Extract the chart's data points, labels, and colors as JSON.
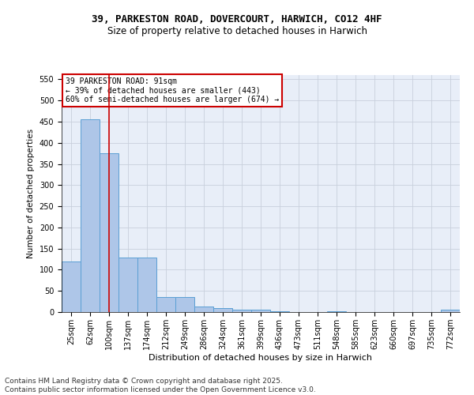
{
  "title_line1": "39, PARKESTON ROAD, DOVERCOURT, HARWICH, CO12 4HF",
  "title_line2": "Size of property relative to detached houses in Harwich",
  "xlabel": "Distribution of detached houses by size in Harwich",
  "ylabel": "Number of detached properties",
  "categories": [
    "25sqm",
    "62sqm",
    "100sqm",
    "137sqm",
    "174sqm",
    "212sqm",
    "249sqm",
    "286sqm",
    "324sqm",
    "361sqm",
    "399sqm",
    "436sqm",
    "473sqm",
    "511sqm",
    "548sqm",
    "585sqm",
    "623sqm",
    "660sqm",
    "697sqm",
    "735sqm",
    "772sqm"
  ],
  "values": [
    120,
    455,
    375,
    128,
    128,
    35,
    35,
    13,
    9,
    6,
    6,
    1,
    0,
    0,
    2,
    0,
    0,
    0,
    0,
    0,
    5
  ],
  "bar_color": "#aec6e8",
  "bar_edge_color": "#5a9fd4",
  "red_line_x": 2,
  "annotation_line1": "39 PARKESTON ROAD: 91sqm",
  "annotation_line2": "← 39% of detached houses are smaller (443)",
  "annotation_line3": "60% of semi-detached houses are larger (674) →",
  "annotation_box_color": "#ffffff",
  "annotation_box_edge": "#cc0000",
  "ylim": [
    0,
    560
  ],
  "yticks": [
    0,
    50,
    100,
    150,
    200,
    250,
    300,
    350,
    400,
    450,
    500,
    550
  ],
  "grid_color": "#c8d0dc",
  "bg_color": "#e8eef8",
  "footer_text": "Contains HM Land Registry data © Crown copyright and database right 2025.\nContains public sector information licensed under the Open Government Licence v3.0.",
  "title_fontsize": 9,
  "subtitle_fontsize": 8.5,
  "annotation_fontsize": 7,
  "footer_fontsize": 6.5,
  "ylabel_fontsize": 7.5,
  "xlabel_fontsize": 8,
  "tick_fontsize": 7
}
